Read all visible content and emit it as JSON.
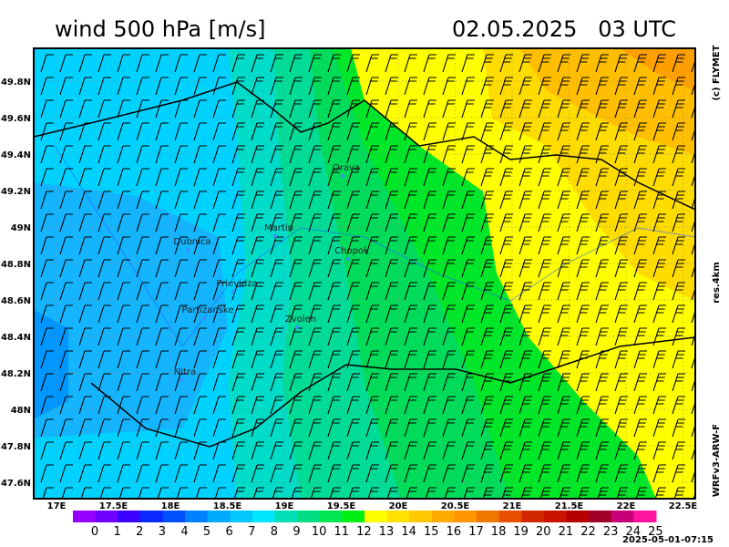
{
  "header": {
    "title": "wind 500 hPa [m/s]",
    "date": "02.05.2025   03 UTC"
  },
  "side_labels": {
    "copyright": "(c) FLYMET",
    "resolution": "res.4km",
    "model": "WRFv3-ARW-F"
  },
  "axes": {
    "longitudes": [
      "17E",
      "17.5E",
      "18E",
      "18.5E",
      "19E",
      "19.5E",
      "20E",
      "20.5E",
      "21E",
      "21.5E",
      "22E",
      "22.5E"
    ],
    "latitudes": [
      "49.8N",
      "49.6N",
      "49.4N",
      "49.2N",
      "49N",
      "48.8N",
      "48.6N",
      "48.4N",
      "48.2N",
      "48N",
      "47.8N",
      "47.6N"
    ]
  },
  "places": [
    {
      "label": "Orava"
    },
    {
      "label": "Martin"
    },
    {
      "label": "Dubnica"
    },
    {
      "label": "Chopok"
    },
    {
      "label": "Prievidza"
    },
    {
      "label": "Partizanske"
    },
    {
      "label": "Zvolen"
    },
    {
      "label": "Nitra"
    }
  ],
  "legend": {
    "labels": [
      0,
      1,
      2,
      3,
      4,
      5,
      6,
      7,
      8,
      9,
      10,
      11,
      12,
      13,
      14,
      15,
      16,
      17,
      18,
      19,
      20,
      21,
      22,
      23,
      24,
      25
    ],
    "colors": [
      "#9600ff",
      "#6e00ff",
      "#3c00ff",
      "#0a28ff",
      "#0050ff",
      "#0082ff",
      "#00aaff",
      "#00c8ff",
      "#00e6ff",
      "#00e0b4",
      "#00dc82",
      "#00e650",
      "#00f014",
      "#ffff00",
      "#ffe100",
      "#ffc800",
      "#ffaa00",
      "#ff9600",
      "#f07800",
      "#e65000",
      "#d22800",
      "#c81400",
      "#b40000",
      "#a00028",
      "#c80078",
      "#ff14a0"
    ]
  },
  "timestamp": "2025-05-01-07:15"
}
